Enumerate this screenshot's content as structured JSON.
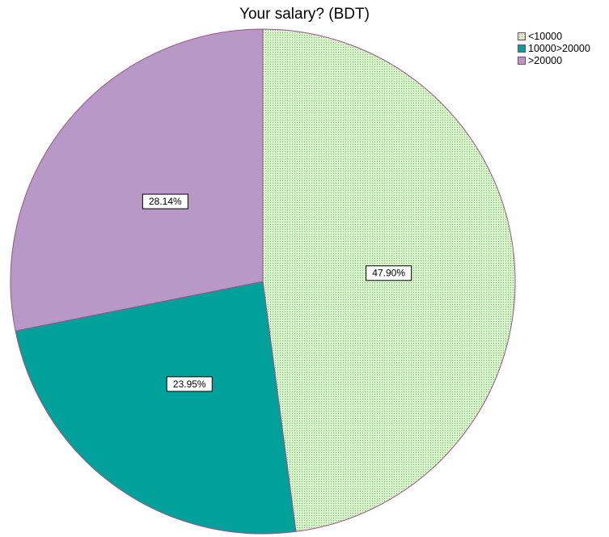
{
  "chart_data": {
    "type": "pie",
    "title": "Your salary? (BDT)",
    "categories": [
      "<10000",
      "10000>20000",
      ">20000"
    ],
    "values": [
      47.9,
      23.95,
      28.14
    ],
    "data_labels": [
      "47.90%",
      "23.95%",
      "28.14%"
    ],
    "colors": [
      "#d5f5c8",
      "#00a19a",
      "#b898c6"
    ],
    "edge_color": "#a0508a",
    "legend_placement": "top-right",
    "start_angle": "12 o'clock",
    "direction": "clockwise",
    "patterns": [
      "dotted",
      "solid",
      "solid"
    ]
  }
}
